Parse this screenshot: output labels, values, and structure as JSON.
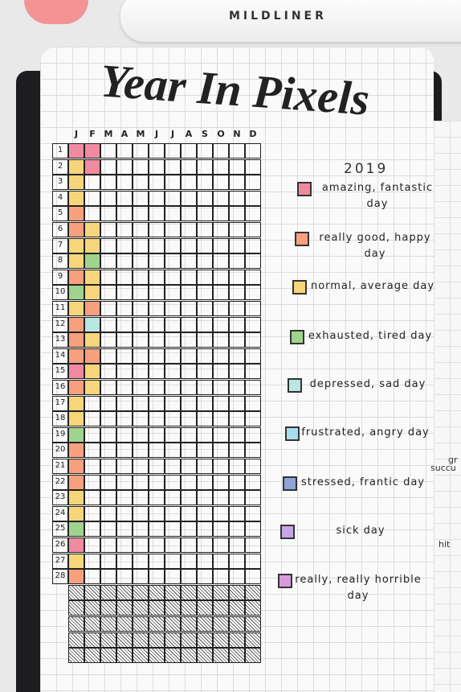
{
  "marker": {
    "brand": "MILDLINER"
  },
  "title": "Year In Pixels",
  "year": "2019",
  "months": [
    "J",
    "F",
    "M",
    "A",
    "M",
    "J",
    "J",
    "A",
    "S",
    "O",
    "N",
    "D"
  ],
  "days": [
    "1",
    "2",
    "3",
    "4",
    "5",
    "6",
    "7",
    "8",
    "9",
    "10",
    "11",
    "12",
    "13",
    "14",
    "15",
    "16",
    "17",
    "18",
    "19",
    "20",
    "21",
    "22",
    "23",
    "24",
    "25",
    "26",
    "27",
    "28"
  ],
  "legend": [
    {
      "label": "amazing, fantastic day",
      "color": "#f08aa0"
    },
    {
      "label": "really good, happy day",
      "color": "#f7a07e"
    },
    {
      "label": "normal, average day",
      "color": "#f7d57a"
    },
    {
      "label": "exhausted, tired day",
      "color": "#9fd48e"
    },
    {
      "label": "depressed, sad day",
      "color": "#b9e6e0"
    },
    {
      "label": "frustrated, angry day",
      "color": "#a9def0"
    },
    {
      "label": "stressed, frantic day",
      "color": "#8fa3d8"
    },
    {
      "label": "sick day",
      "color": "#c6a6e8"
    },
    {
      "label": "really, really horrible day",
      "color": "#d99ae0"
    }
  ],
  "side_page": [
    "gr",
    "succu",
    "hit"
  ]
}
